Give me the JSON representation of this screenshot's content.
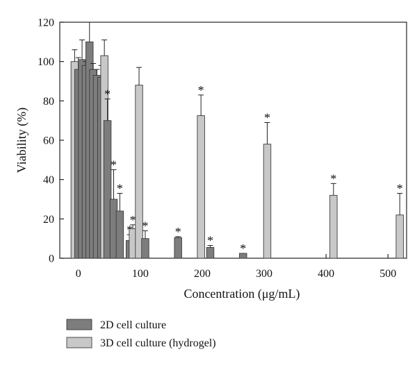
{
  "chart_data": {
    "type": "bar",
    "title": "",
    "xlabel": "Concentration (μg/mL)",
    "ylabel": "Viability (%)",
    "xlim": [
      -30,
      530
    ],
    "ylim": [
      0,
      120
    ],
    "xticks": [
      0,
      100,
      200,
      300,
      400,
      500
    ],
    "yticks": [
      0,
      20,
      40,
      60,
      80,
      100,
      120
    ],
    "colors": {
      "2d": "#7d7d7d",
      "3d": "#c8c8c8",
      "stroke": "#3a3a3a"
    },
    "legend_position": "bottom-left",
    "series": [
      {
        "name": "2D cell culture",
        "color": "#7d7d7d",
        "points": [
          {
            "x": 0,
            "y": 96,
            "err": 6,
            "sig": ""
          },
          {
            "x": 6,
            "y": 101,
            "err": 10,
            "sig": ""
          },
          {
            "x": 12,
            "y": 98,
            "err": 2,
            "sig": ""
          },
          {
            "x": 18,
            "y": 110,
            "err": 10,
            "sig": ""
          },
          {
            "x": 24,
            "y": 96,
            "err": 3,
            "sig": ""
          },
          {
            "x": 30,
            "y": 93,
            "err": 3,
            "sig": ""
          },
          {
            "x": 37,
            "y": 92,
            "err": 6,
            "sig": ""
          },
          {
            "x": 47,
            "y": 70,
            "err": 11,
            "sig": "*"
          },
          {
            "x": 57,
            "y": 30,
            "err": 15,
            "sig": "*"
          },
          {
            "x": 67,
            "y": 24,
            "err": 9,
            "sig": "*"
          },
          {
            "x": 83,
            "y": 9,
            "err": 3,
            "sig": "*"
          },
          {
            "x": 108,
            "y": 10,
            "err": 4,
            "sig": "*"
          },
          {
            "x": 161,
            "y": 10.5,
            "err": 0.5,
            "sig": "*"
          },
          {
            "x": 213,
            "y": 5.5,
            "err": 1,
            "sig": "*"
          },
          {
            "x": 266,
            "y": 2.5,
            "err": 0,
            "sig": "*"
          }
        ]
      },
      {
        "name": "3D cell culture (hydrogel)",
        "color": "#c8c8c8",
        "points": [
          {
            "x": -6,
            "y": 100,
            "err": 6,
            "sig": ""
          },
          {
            "x": 42,
            "y": 103,
            "err": 8,
            "sig": ""
          },
          {
            "x": 88,
            "y": 15,
            "err": 2,
            "sig": "*"
          },
          {
            "x": 98,
            "y": 88,
            "err": 9,
            "sig": ""
          },
          {
            "x": 198,
            "y": 72.5,
            "err": 10.5,
            "sig": "*"
          },
          {
            "x": 305,
            "y": 58,
            "err": 11,
            "sig": "*"
          },
          {
            "x": 412,
            "y": 32,
            "err": 6,
            "sig": "*"
          },
          {
            "x": 519,
            "y": 22,
            "err": 11,
            "sig": "*"
          }
        ]
      }
    ]
  }
}
